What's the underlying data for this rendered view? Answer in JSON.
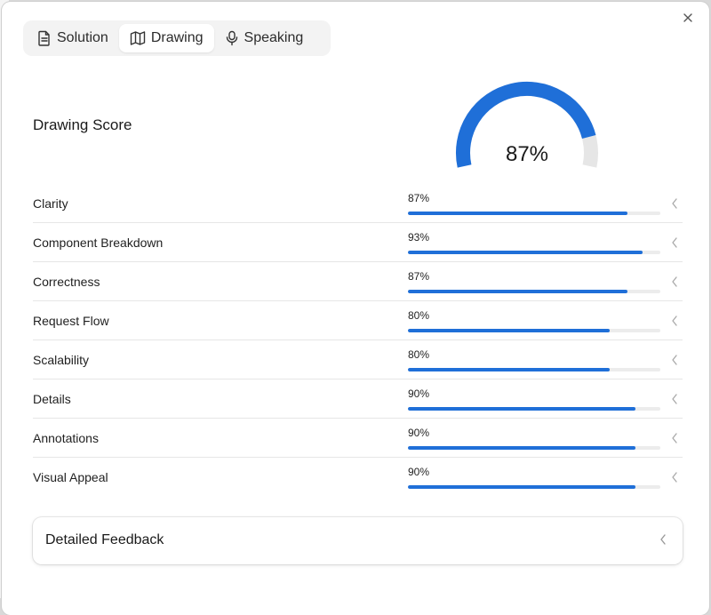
{
  "tabs": [
    {
      "label": "Solution",
      "icon": "document-icon",
      "active": false
    },
    {
      "label": "Drawing",
      "icon": "map-icon",
      "active": true
    },
    {
      "label": "Speaking",
      "icon": "microphone-icon",
      "active": false
    }
  ],
  "score": {
    "title": "Drawing Score",
    "value_label": "87%",
    "value": 0.87
  },
  "metrics": [
    {
      "label": "Clarity",
      "percent_label": "87%",
      "value": 0.87
    },
    {
      "label": "Component Breakdown",
      "percent_label": "93%",
      "value": 0.93
    },
    {
      "label": "Correctness",
      "percent_label": "87%",
      "value": 0.87
    },
    {
      "label": "Request Flow",
      "percent_label": "80%",
      "value": 0.8
    },
    {
      "label": "Scalability",
      "percent_label": "80%",
      "value": 0.8
    },
    {
      "label": "Details",
      "percent_label": "90%",
      "value": 0.9
    },
    {
      "label": "Annotations",
      "percent_label": "90%",
      "value": 0.9
    },
    {
      "label": "Visual Appeal",
      "percent_label": "90%",
      "value": 0.9
    }
  ],
  "feedback": {
    "title": "Detailed Feedback"
  },
  "colors": {
    "accent": "#1f6fd8",
    "track": "#e6e6e6"
  }
}
